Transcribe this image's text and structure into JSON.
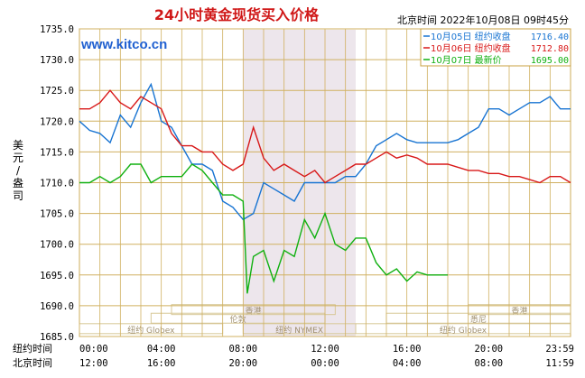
{
  "chart_data": {
    "type": "line",
    "title": "24小时黄金现货买入价格",
    "timestamp": "北京时间  2022年10月08日 09时45分",
    "watermark": "www.kitco.cn",
    "ylabel": "美元/盎司",
    "ylim": [
      1685,
      1735
    ],
    "yticks": [
      "1735.0",
      "1730.0",
      "1725.0",
      "1720.0",
      "1715.0",
      "1710.0",
      "1705.0",
      "1700.0",
      "1695.0",
      "1690.0",
      "1685.0"
    ],
    "xlim": [
      0,
      24
    ],
    "xaxis_rows": [
      {
        "label": "纽约时间",
        "ticks": [
          "00:00",
          "04:00",
          "08:00",
          "12:00",
          "16:00",
          "20:00",
          "23:59"
        ]
      },
      {
        "label": "北京时间",
        "ticks": [
          "12:00",
          "16:00",
          "20:00",
          "00:00",
          "04:00",
          "08:00",
          "11:59"
        ]
      }
    ],
    "shaded_session": {
      "from": 8,
      "to": 13.5,
      "label": "纽约 NYMEX"
    },
    "market_rows": [
      {
        "name": "香港",
        "from": 4.5,
        "to": 12.5
      },
      {
        "name": "香港",
        "from": 19,
        "to": 24
      },
      {
        "name": "伦敦",
        "from": 3.5,
        "to": 12
      },
      {
        "name": "悉尼",
        "from": 15,
        "to": 24
      },
      {
        "name": "纽约 Globex",
        "from": 0,
        "to": 7
      },
      {
        "name": "纽约 Globex",
        "from": 13.5,
        "to": 24
      },
      {
        "name": "纽约 NYMEX",
        "from": 8,
        "to": 13.5
      }
    ],
    "legend": [
      {
        "label": "10月05日  纽约收盘",
        "value": "1716.40",
        "color": "#1874d2"
      },
      {
        "label": "10月06日  纽约收盘",
        "value": "1712.80",
        "color": "#d81818"
      },
      {
        "label": "10月07日   最新价",
        "value": "1695.00",
        "color": "#10b010"
      }
    ],
    "series": [
      {
        "color": "#1874d2",
        "x": [
          0,
          0.5,
          1,
          1.5,
          2,
          2.5,
          3,
          3.5,
          4,
          4.5,
          5,
          5.5,
          6,
          6.5,
          7,
          7.5,
          8,
          8.5,
          9,
          9.5,
          10,
          10.5,
          11,
          11.5,
          12,
          12.5,
          13,
          13.5,
          14,
          14.5,
          15,
          15.5,
          16,
          16.5,
          17,
          17.5,
          18,
          18.5,
          19,
          19.5,
          20,
          20.5,
          21,
          21.5,
          22,
          22.5,
          23,
          23.5,
          24
        ],
        "y": [
          1720,
          1718.5,
          1718,
          1716.5,
          1721,
          1719,
          1723,
          1726,
          1720,
          1719,
          1716,
          1713,
          1713,
          1712,
          1707,
          1706,
          1704,
          1705,
          1710,
          1709,
          1708,
          1707,
          1710,
          1710,
          1710,
          1710,
          1711,
          1711,
          1713,
          1716,
          1717,
          1718,
          1717,
          1716.5,
          1716.5,
          1716.5,
          1716.5,
          1717,
          1718,
          1719,
          1722,
          1722,
          1721,
          1722,
          1723,
          1723,
          1724,
          1722,
          1722
        ]
      },
      {
        "color": "#d81818",
        "x": [
          0,
          0.5,
          1,
          1.5,
          2,
          2.5,
          3,
          3.5,
          4,
          4.5,
          5,
          5.5,
          6,
          6.5,
          7,
          7.5,
          8,
          8.5,
          9,
          9.5,
          10,
          10.5,
          11,
          11.5,
          12,
          12.5,
          13,
          13.5,
          14,
          14.5,
          15,
          15.5,
          16,
          16.5,
          17,
          17.5,
          18,
          18.5,
          19,
          19.5,
          20,
          20.5,
          21,
          21.5,
          22,
          22.5,
          23,
          23.5,
          24
        ],
        "y": [
          1722,
          1722,
          1723,
          1725,
          1723,
          1722,
          1724,
          1723,
          1722,
          1718,
          1716,
          1716,
          1715,
          1715,
          1713,
          1712,
          1713,
          1719,
          1714,
          1712,
          1713,
          1712,
          1711,
          1712,
          1710,
          1711,
          1712,
          1713,
          1713,
          1714,
          1715,
          1714,
          1714.5,
          1714,
          1713,
          1713,
          1713,
          1712.5,
          1712,
          1712,
          1711.5,
          1711.5,
          1711,
          1711,
          1710.5,
          1710,
          1711,
          1711,
          1710
        ]
      },
      {
        "color": "#10b010",
        "x": [
          0,
          0.5,
          1,
          1.5,
          2,
          2.5,
          3,
          3.5,
          4,
          4.5,
          5,
          5.5,
          6,
          6.5,
          7,
          7.5,
          8,
          8.2,
          8.5,
          9,
          9.5,
          10,
          10.5,
          11,
          11.5,
          12,
          12.5,
          13,
          13.5,
          14,
          14.5,
          15,
          15.5,
          16,
          16.5,
          17,
          17.5,
          18
        ],
        "y": [
          1710,
          1710,
          1711,
          1710,
          1711,
          1713,
          1713,
          1710,
          1711,
          1711,
          1711,
          1713,
          1712,
          1710,
          1708,
          1708,
          1707,
          1692,
          1698,
          1699,
          1694,
          1699,
          1698,
          1704,
          1701,
          1705,
          1700,
          1699,
          1701,
          1701,
          1697,
          1695,
          1696,
          1694,
          1695.5,
          1695,
          1695,
          1695
        ]
      }
    ]
  }
}
